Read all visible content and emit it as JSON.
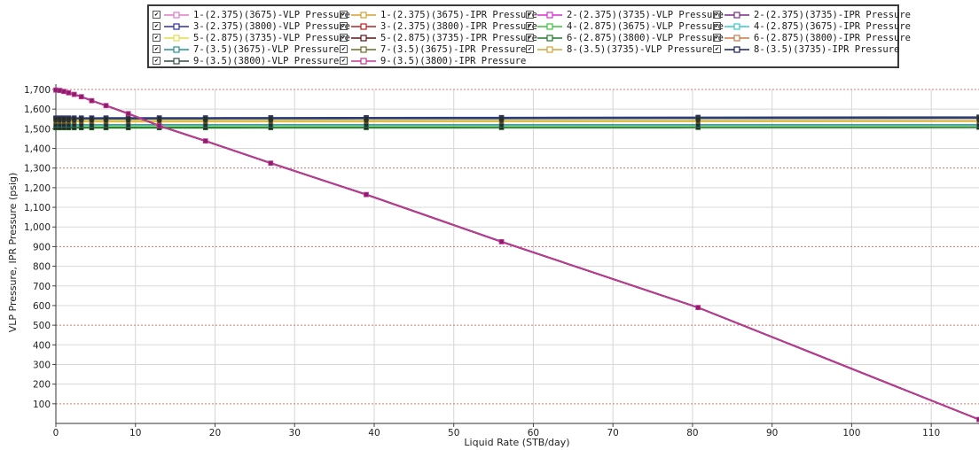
{
  "chart_data": {
    "type": "line",
    "xlabel": "Liquid Rate  (STB/day)",
    "ylabel": "VLP Pressure, IPR Pressure  (psig)",
    "xlim": [
      0,
      116
    ],
    "ylim": [
      0,
      1700
    ],
    "x_ticks": [
      "0",
      "10",
      "20",
      "30",
      "40",
      "50",
      "60",
      "70",
      "80",
      "90",
      "100",
      "110"
    ],
    "y_ticks": [
      "100",
      "200",
      "300",
      "400",
      "500",
      "600",
      "700",
      "800",
      "900",
      "1,000",
      "1,100",
      "1,200",
      "1,300",
      "1,400",
      "1,500",
      "1,600",
      "1,700"
    ],
    "grid": true,
    "legend_position": "top",
    "ipr": {
      "x": [
        0,
        0.5,
        1.0,
        1.6,
        2.3,
        3.2,
        4.5,
        6.3,
        9.1,
        13.0,
        18.8,
        27.0,
        39.0,
        56.0,
        80.7,
        116.0
      ],
      "y": [
        1697,
        1695,
        1690,
        1683,
        1675,
        1663,
        1643,
        1618,
        1577,
        1515,
        1438,
        1325,
        1165,
        925,
        590,
        20
      ]
    },
    "vlp_x": [
      0,
      0.5,
      1.0,
      1.6,
      2.3,
      3.2,
      4.5,
      6.3,
      9.1,
      13.0,
      18.8,
      27.0,
      39.0,
      56.0,
      80.7,
      116.0
    ],
    "series": [
      {
        "name": "1-(2.375)(3675)-VLP Pressure",
        "color": "#e27cc2",
        "kind": "vlp",
        "level": 1553,
        "slope": 0.0
      },
      {
        "name": "1-(2.375)(3675)-IPR Pressure",
        "color": "#d4a02e",
        "kind": "ipr"
      },
      {
        "name": "2-(2.375)(3735)-VLP Pressure",
        "color": "#d62fd0",
        "kind": "vlp",
        "level": 1553,
        "slope": 0.02
      },
      {
        "name": "2-(2.375)(3735)-IPR Pressure",
        "color": "#7a2a8a",
        "kind": "ipr"
      },
      {
        "name": "3-(2.375)(3800)-VLP Pressure",
        "color": "#2b2fa8",
        "kind": "vlp",
        "level": 1555,
        "slope": 0.04
      },
      {
        "name": "3-(2.375)(3800)-IPR Pressure",
        "color": "#b32222",
        "kind": "ipr"
      },
      {
        "name": "4-(2.875)(3675)-VLP Pressure",
        "color": "#3cc23c",
        "kind": "vlp",
        "level": 1510,
        "slope": 0.0
      },
      {
        "name": "4-(2.875)(3675)-IPR Pressure",
        "color": "#36c9c9",
        "kind": "ipr"
      },
      {
        "name": "5-(2.875)(3735)-VLP Pressure",
        "color": "#e6dc4a",
        "kind": "vlp",
        "level": 1535,
        "slope": 0.02
      },
      {
        "name": "5-(2.875)(3735)-IPR Pressure",
        "color": "#5a1414",
        "kind": "ipr"
      },
      {
        "name": "6-(2.875)(3800)-VLP Pressure",
        "color": "#1f7a2a",
        "kind": "vlp",
        "level": 1505,
        "slope": 0.02
      },
      {
        "name": "6-(2.875)(3800)-IPR Pressure",
        "color": "#c8784a",
        "kind": "ipr"
      },
      {
        "name": "7-(3.5)(3675)-VLP Pressure",
        "color": "#2a8f8f",
        "kind": "vlp",
        "level": 1520,
        "slope": 0.0
      },
      {
        "name": "7-(3.5)(3675)-IPR Pressure",
        "color": "#6a6a2a",
        "kind": "ipr"
      },
      {
        "name": "8-(3.5)(3735)-VLP Pressure",
        "color": "#d6a23a",
        "kind": "vlp",
        "level": 1540,
        "slope": 0.0
      },
      {
        "name": "8-(3.5)(3735)-IPR Pressure",
        "color": "#1a1a5e",
        "kind": "ipr"
      },
      {
        "name": "9-(3.5)(3800)-VLP Pressure",
        "color": "#2f4f3f",
        "kind": "vlp",
        "level": 1550,
        "slope": 0.03
      },
      {
        "name": "9-(3.5)(3800)-IPR Pressure",
        "color": "#c2399a",
        "kind": "ipr"
      }
    ]
  }
}
